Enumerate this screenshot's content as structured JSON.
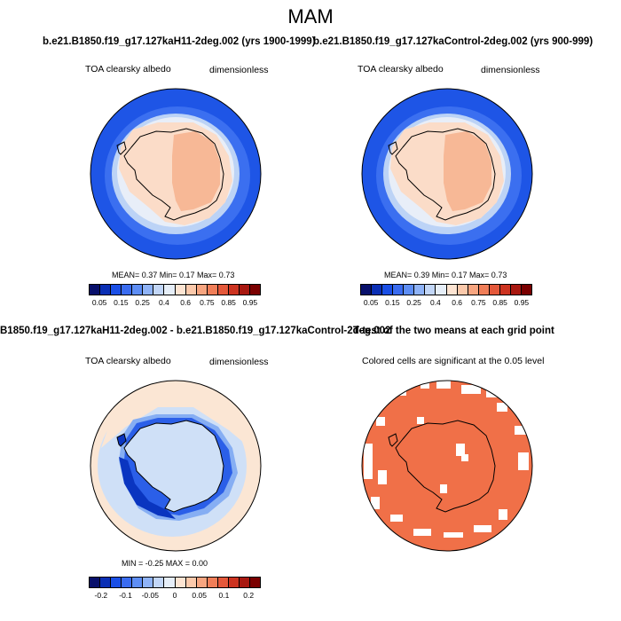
{
  "figure": {
    "title": "MAM"
  },
  "panels": {
    "top_left": {
      "case_title": "b.e21.B1850.f19_g17.127kaH11-2deg.002 (yrs 1900-1999)",
      "left_label": "TOA clearsky albedo",
      "right_label": "dimensionless",
      "stats": "MEAN=   0.37  Min=   0.17  Max=   0.73"
    },
    "top_right": {
      "case_title": "b.e21.B1850.f19_g17.127kaControl-2deg.002 (yrs 900-999)",
      "left_label": "TOA clearsky albedo",
      "right_label": "dimensionless",
      "stats": "MEAN=   0.39  Min=   0.17  Max=   0.73"
    },
    "bottom_left": {
      "case_title": "B1850.f19_g17.127kaH11-2deg.002 - b.e21.B1850.f19_g17.127kaControl-2deg.002",
      "left_label": "TOA clearsky albedo",
      "right_label": "dimensionless",
      "stats": "MIN = -0.25 MAX =  0.00"
    },
    "bottom_right": {
      "case_title": "T-test of the two means at each grid point",
      "left_label": "Colored cells are significant at the 0.05 level"
    }
  },
  "colorbars": {
    "albedo": {
      "ticks": [
        "0.05",
        "0.15",
        "0.25",
        "0.4",
        "0.6",
        "0.75",
        "0.85",
        "0.95"
      ],
      "colors": [
        "#08106b",
        "#0a2fb5",
        "#1a4fe6",
        "#3a6cf0",
        "#5e8ef5",
        "#8fb3f7",
        "#c2d6f7",
        "#e6eef8",
        "#fde4d2",
        "#fbc9ab",
        "#f7a580",
        "#f07e58",
        "#e4583a",
        "#cc3320",
        "#a81810",
        "#7a0000"
      ]
    },
    "difference": {
      "ticks": [
        "-0.2",
        "-0.1",
        "-0.05",
        "0",
        "0.05",
        "0.1",
        "0.2"
      ],
      "colors": [
        "#08106b",
        "#0a2fb5",
        "#1a4fe6",
        "#3a6cf0",
        "#5e8ef5",
        "#8fb3f7",
        "#c2d6f7",
        "#e6eef8",
        "#fde4d2",
        "#fbc9ab",
        "#f7a580",
        "#f07e58",
        "#e4583a",
        "#cc3320",
        "#a81810",
        "#7a0000"
      ]
    }
  },
  "map_colors": {
    "ocean_low": "#1e55e6",
    "ocean_mid": "#3b6ff0",
    "ice_edge": "#bcd3f6",
    "ice_pale": "#e8eef8",
    "land_pale": "#fbdcc8",
    "land_mid": "#f7b896",
    "diff_bg": "#fbe6d4",
    "diff_light": "#cfe0f7",
    "diff_mid": "#86aef3",
    "diff_dark": "#2b5fe8",
    "diff_deep": "#0a35c0",
    "ttest_fill": "#f07048"
  }
}
